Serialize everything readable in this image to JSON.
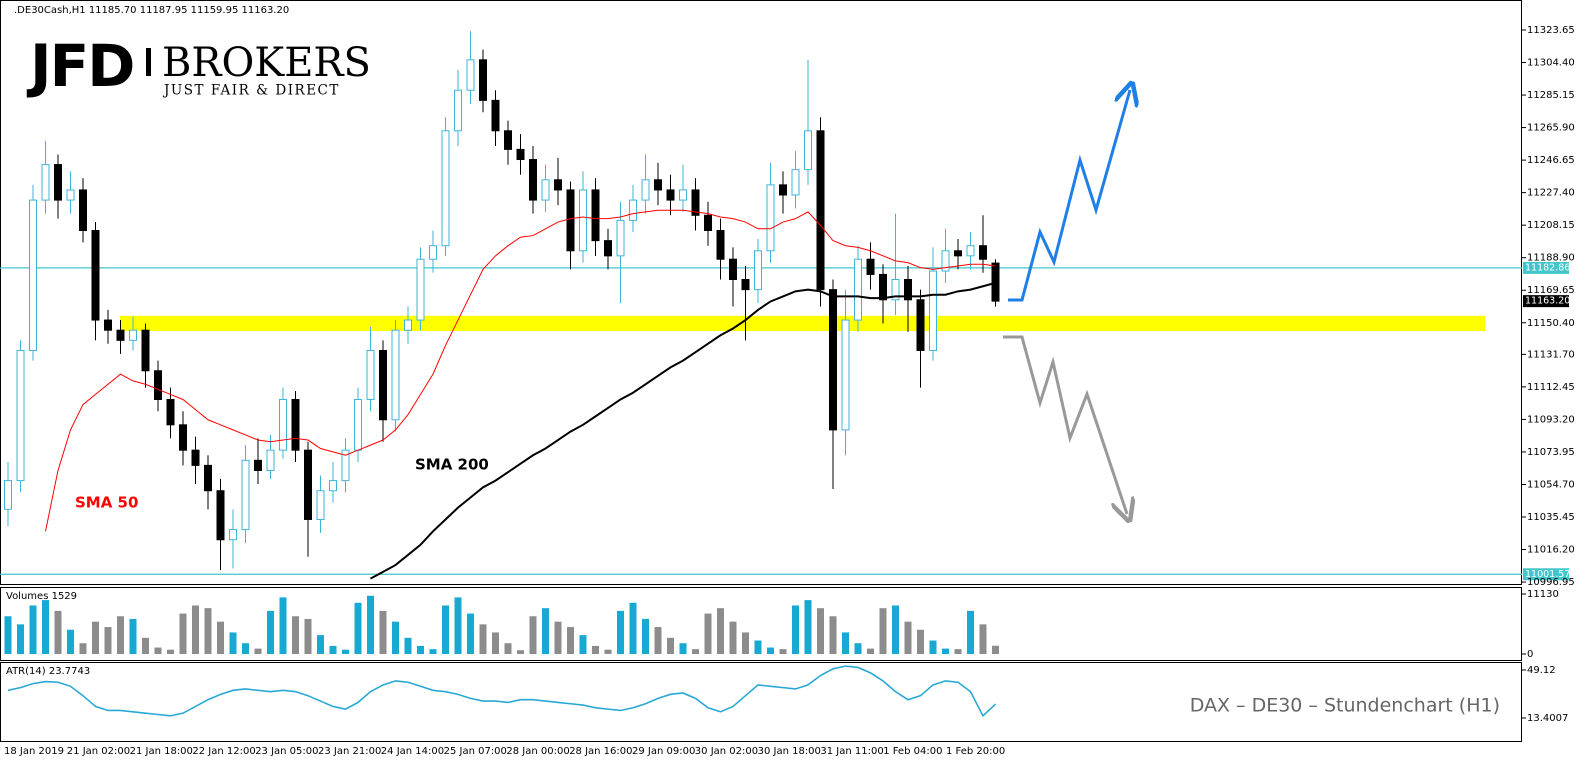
{
  "logo": {
    "brand": "JFD",
    "name": "BROKERS",
    "tagline": "JUST FAIR & DIRECT"
  },
  "caption": "DAX – DE30 – Stundenchart (H1)",
  "chart_data": [
    {
      "type": "candlestick",
      "title": ".DE30Cash,H1  11185.70 11187.95 11159.95 11163.20",
      "up_color": "#3fb6d9",
      "down_color": "#000000",
      "ylim": [
        10996.4,
        11341.4
      ],
      "yticks": [
        11323.65,
        {
          "value": 11304.4,
          "label": "11304.40"
        },
        11285.15,
        {
          "value": 11265.9,
          "label": "11265.90"
        },
        11246.65,
        {
          "value": 11227.4,
          "label": "11227.40"
        },
        11208.15,
        {
          "value": 11188.9,
          "label": "11188.90"
        },
        11169.65,
        {
          "value": 11150.4,
          "label": "11150.40"
        },
        {
          "value": 11131.7,
          "label": "11131.70"
        },
        11112.45,
        {
          "value": 11093.2,
          "label": "11093.20"
        },
        11073.95,
        {
          "value": 11054.7,
          "label": "11054.70"
        },
        11035.45,
        {
          "value": 11016.2,
          "label": "11016.20"
        },
        10996.95
      ],
      "xtick_labels": [
        "18 Jan 2019",
        "21 Jan 02:00",
        "21 Jan 18:00",
        "22 Jan 12:00",
        "23 Jan 05:00",
        "23 Jan 21:00",
        "24 Jan 14:00",
        "25 Jan 07:00",
        "28 Jan 00:00",
        "28 Jan 16:00",
        "29 Jan 09:00",
        "30 Jan 02:00",
        "30 Jan 18:00",
        "31 Jan 11:00",
        "1 Feb 04:00",
        "1 Feb 20:00"
      ],
      "open": [
        11040,
        11057,
        11134,
        11223,
        11244,
        11223,
        11229,
        11205,
        11152,
        11146,
        11140,
        11146,
        11122,
        11105,
        11090,
        11075,
        11066,
        11051,
        11022,
        11028,
        11069,
        11063,
        11075,
        11105,
        11075,
        11034,
        11051,
        11057,
        11075,
        11105,
        11134,
        11093,
        11146,
        11152,
        11188,
        11196,
        11264,
        11288,
        11306,
        11282,
        11264,
        11253,
        11247,
        11223,
        11235,
        11229,
        11193,
        11229,
        11199,
        11190,
        11211,
        11223,
        11235,
        11229,
        11223,
        11229,
        11214,
        11205,
        11188,
        11176,
        11170,
        11193,
        11232,
        11226,
        11241,
        11264,
        11170,
        11087,
        11152,
        11188,
        11179,
        11164,
        11176,
        11164,
        11134,
        11181,
        11193,
        11190,
        11196,
        11185.7
      ],
      "high": [
        11068,
        11140,
        11232,
        11258,
        11250,
        11240,
        11236,
        11210,
        11158,
        11152,
        11154,
        11150,
        11128,
        11112,
        11098,
        11083,
        11072,
        11058,
        11040,
        11078,
        11082,
        11084,
        11112,
        11110,
        11080,
        11060,
        11068,
        11082,
        11112,
        11148,
        11140,
        11152,
        11160,
        11195,
        11205,
        11272,
        11300,
        11323,
        11312,
        11288,
        11270,
        11262,
        11255,
        11244,
        11248,
        11234,
        11240,
        11236,
        11206,
        11222,
        11232,
        11250,
        11245,
        11238,
        11244,
        11236,
        11222,
        11212,
        11195,
        11184,
        11200,
        11245,
        11240,
        11252,
        11306,
        11272,
        11176,
        11170,
        11196,
        11198,
        11185,
        11215,
        11184,
        11170,
        11195,
        11206,
        11200,
        11204,
        11214,
        11187.95
      ],
      "low": [
        11030,
        11050,
        11128,
        11215,
        11212,
        11215,
        11198,
        11140,
        11138,
        11132,
        11134,
        11112,
        11098,
        11082,
        11066,
        11055,
        11040,
        11004,
        11005,
        11020,
        11055,
        11058,
        11070,
        11068,
        11012,
        11026,
        11044,
        11050,
        11068,
        11098,
        11080,
        11086,
        11138,
        11146,
        11180,
        11190,
        11255,
        11280,
        11275,
        11255,
        11244,
        11238,
        11215,
        11216,
        11220,
        11182,
        11186,
        11190,
        11182,
        11162,
        11204,
        11215,
        11220,
        11214,
        11216,
        11205,
        11196,
        11176,
        11160,
        11140,
        11162,
        11186,
        11215,
        11218,
        11232,
        11160,
        11052,
        11072,
        11145,
        11170,
        11150,
        11155,
        11145,
        11112,
        11128,
        11174,
        11182,
        11182,
        11180,
        11159.95
      ],
      "close": [
        11057,
        11134,
        11223,
        11244,
        11223,
        11229,
        11205,
        11152,
        11146,
        11140,
        11146,
        11122,
        11105,
        11090,
        11075,
        11066,
        11051,
        11022,
        11028,
        11069,
        11063,
        11075,
        11105,
        11075,
        11034,
        11051,
        11057,
        11075,
        11105,
        11134,
        11093,
        11146,
        11152,
        11188,
        11196,
        11264,
        11288,
        11306,
        11282,
        11264,
        11253,
        11247,
        11223,
        11235,
        11229,
        11193,
        11229,
        11199,
        11190,
        11211,
        11223,
        11235,
        11229,
        11223,
        11229,
        11214,
        11205,
        11188,
        11176,
        11170,
        11193,
        11232,
        11226,
        11241,
        11264,
        11170,
        11087,
        11152,
        11188,
        11179,
        11164,
        11176,
        11164,
        11134,
        11181,
        11193,
        11190,
        11196,
        11188,
        11163.2
      ],
      "series": [
        {
          "name": "SMA 50",
          "color": "#ff0000",
          "values": [
            null,
            null,
            null,
            11027,
            11063,
            11087,
            11102,
            11108,
            11114,
            11120,
            11116,
            11114,
            11111,
            11108,
            11105,
            11099,
            11093,
            11090,
            11087,
            11084,
            11081,
            11080,
            11081,
            11082,
            11081,
            11076,
            11074,
            11072,
            11075,
            11078,
            11081,
            11087,
            11096,
            11108,
            11120,
            11137,
            11152,
            11167,
            11182,
            11190,
            11196,
            11201,
            11202,
            11206,
            11210,
            11212,
            11213,
            11212,
            11212,
            11213,
            11215,
            11216,
            11217,
            11217,
            11217,
            11216,
            11215,
            11213,
            11212,
            11210,
            11206,
            11206,
            11210,
            11212,
            11216,
            11208,
            11199,
            11196,
            11195,
            11193,
            11190,
            11187,
            11186,
            11183,
            11182,
            11183,
            11184,
            11185,
            11185,
            11184
          ]
        },
        {
          "name": "SMA 200",
          "color": "#000000",
          "values": [
            null,
            null,
            null,
            null,
            null,
            null,
            null,
            null,
            null,
            null,
            null,
            null,
            null,
            null,
            null,
            null,
            null,
            null,
            null,
            null,
            null,
            null,
            null,
            null,
            null,
            null,
            null,
            null,
            null,
            10999,
            11003,
            11007,
            11013,
            11019,
            11027,
            11034,
            11041,
            11047,
            11053,
            11057,
            11062,
            11067,
            11072,
            11076,
            11081,
            11086,
            11090,
            11095,
            11100,
            11105,
            11109,
            11114,
            11119,
            11124,
            11128,
            11133,
            11138,
            11143,
            11147,
            11152,
            11158,
            11163,
            11166,
            11169,
            11170,
            11169,
            11166,
            11166,
            11166,
            11165,
            11165,
            11166,
            11166,
            11166,
            11167,
            11167,
            11169,
            11170,
            11172,
            11174
          ]
        }
      ],
      "zone": {
        "low": 11145.5,
        "high": 11154.5,
        "color": "#ffff00"
      },
      "hlines": [
        {
          "value": 11182.86,
          "color": "#41c6cc"
        },
        {
          "value": 11001.57,
          "color": "#41c6cc"
        }
      ],
      "last_price": {
        "value": 11163.2,
        "label": "11163.20",
        "color": "#000000"
      }
    },
    {
      "type": "bar",
      "title": "Volumes 1529",
      "up_color": "#17a9d1",
      "down_color": "#8c8c8c",
      "ylim": [
        -1113,
        12058
      ],
      "yticks": [
        0,
        11130
      ],
      "values": [
        7000,
        5500,
        9000,
        10000,
        8000,
        4500,
        2000,
        6000,
        5000,
        7000,
        6500,
        3000,
        1200,
        800,
        7500,
        9000,
        8500,
        6000,
        4000,
        2000,
        1000,
        8000,
        10500,
        7000,
        6500,
        3500,
        1500,
        800,
        9500,
        10800,
        8000,
        6000,
        3000,
        1500,
        900,
        9000,
        10500,
        7500,
        5500,
        4000,
        2000,
        700,
        7000,
        8500,
        6000,
        5000,
        3500,
        1500,
        800,
        8000,
        9500,
        6500,
        5000,
        3000,
        2000,
        900,
        7500,
        8500,
        6000,
        4000,
        2500,
        1200,
        900,
        9000,
        10000,
        8500,
        7000,
        4000,
        2000,
        1000,
        8500,
        9000,
        6000,
        4500,
        2500,
        1000,
        900,
        8000,
        5500,
        1529
      ]
    },
    {
      "type": "line",
      "title": "ATR(14) 23.7743",
      "color": "#29a8d6",
      "ylim": [
        -2.97,
        55.07
      ],
      "yticks": [
        49.12,
        13.4007
      ],
      "values": [
        34,
        36,
        39,
        40.5,
        40,
        37,
        30,
        22,
        19,
        19,
        18,
        17,
        16,
        15,
        17,
        22,
        27,
        31,
        34,
        35,
        34,
        33,
        34,
        33,
        30,
        26,
        22,
        20,
        25,
        33,
        38,
        41,
        40,
        37,
        34,
        33,
        31,
        28,
        26,
        26,
        25,
        27,
        27,
        26,
        25,
        24,
        23,
        21,
        20,
        19,
        21,
        24,
        28,
        31,
        32,
        28,
        21,
        18,
        22,
        30,
        38,
        37,
        36,
        35,
        38,
        45,
        50,
        52,
        51,
        47,
        41,
        33,
        27,
        30,
        38,
        41,
        40,
        33,
        15,
        23.7743
      ]
    }
  ]
}
